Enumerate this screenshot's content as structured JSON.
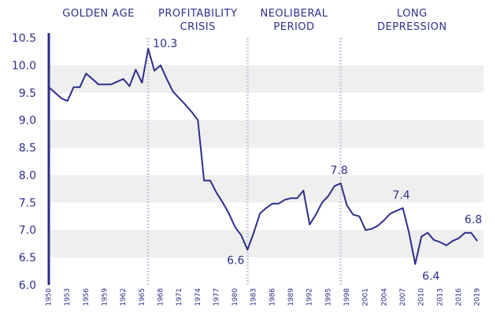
{
  "chart_data": {
    "type": "line",
    "title": "",
    "xlabel": "",
    "ylabel": "",
    "xlim": [
      1950,
      2020
    ],
    "ylim": [
      6.0,
      10.5
    ],
    "grid": "alternating-bands",
    "colors": {
      "line": "#2e2e8c",
      "text": "#2e2e8c",
      "band": "#efefef",
      "divider": "#cfcfe2"
    },
    "yticks": [
      6.0,
      6.5,
      7.0,
      7.5,
      8.0,
      8.5,
      9.0,
      9.5,
      10.0,
      10.5
    ],
    "ytick_labels": [
      "6.0",
      "6.5",
      "7.0",
      "7.5",
      "8.0",
      "8.5",
      "9.0",
      "9.5",
      "10.0",
      "10.5"
    ],
    "xticks": [
      1950,
      1953,
      1956,
      1959,
      1962,
      1965,
      1968,
      1971,
      1974,
      1977,
      1980,
      1983,
      1986,
      1989,
      1992,
      1995,
      1998,
      2001,
      2004,
      2007,
      2010,
      2013,
      2016,
      2019
    ],
    "xtick_labels": [
      "1950",
      "1953",
      "1956",
      "1959",
      "1962",
      "1965",
      "1968",
      "1971",
      "1974",
      "1977",
      "1980",
      "1983",
      "1986",
      "1989",
      "1992",
      "1995",
      "1998",
      "2001",
      "2004",
      "2007",
      "2010",
      "2013",
      "2016",
      "2019"
    ],
    "periods": [
      {
        "lines": [
          "GOLDEN AGE"
        ],
        "start": 1950,
        "end": 1966
      },
      {
        "lines": [
          "PROFITABILITY",
          "CRISIS"
        ],
        "start": 1966,
        "end": 1982
      },
      {
        "lines": [
          "NEOLIBERAL",
          "PERIOD"
        ],
        "start": 1982,
        "end": 1997
      },
      {
        "lines": [
          "LONG",
          "DEPRESSION"
        ],
        "start": 1997,
        "end": 2020
      }
    ],
    "dividers": [
      1966,
      1982,
      1997
    ],
    "series": [
      {
        "x": [
          1950,
          1951,
          1952,
          1953,
          1954,
          1955,
          1956,
          1957,
          1958,
          1959,
          1960,
          1961,
          1962,
          1963,
          1964,
          1965,
          1966,
          1967,
          1968,
          1969,
          1970,
          1971,
          1972,
          1973,
          1974,
          1975,
          1976,
          1977,
          1978,
          1979,
          1980,
          1981,
          1982,
          1983,
          1984,
          1985,
          1986,
          1987,
          1988,
          1989,
          1990,
          1991,
          1992,
          1993,
          1994,
          1995,
          1996,
          1997,
          1998,
          1999,
          2000,
          2001,
          2002,
          2003,
          2004,
          2005,
          2006,
          2007,
          2008,
          2009,
          2010,
          2011,
          2012,
          2013,
          2014,
          2015,
          2016,
          2017,
          2018,
          2019
        ],
        "y": [
          9.6,
          9.5,
          9.4,
          9.35,
          9.6,
          9.6,
          9.85,
          9.75,
          9.65,
          9.65,
          9.65,
          9.7,
          9.75,
          9.62,
          9.92,
          9.68,
          10.3,
          9.9,
          10.0,
          9.75,
          9.52,
          9.4,
          9.28,
          9.15,
          9.0,
          7.9,
          7.9,
          7.68,
          7.5,
          7.3,
          7.05,
          6.9,
          6.64,
          6.95,
          7.3,
          7.4,
          7.48,
          7.48,
          7.55,
          7.58,
          7.58,
          7.72,
          7.1,
          7.28,
          7.5,
          7.62,
          7.8,
          7.85,
          7.45,
          7.28,
          7.25,
          7.0,
          7.02,
          7.08,
          7.18,
          7.3,
          7.35,
          7.4,
          6.95,
          6.38,
          6.88,
          6.95,
          6.82,
          6.78,
          6.72,
          6.8,
          6.85,
          6.95,
          6.95,
          6.8
        ]
      }
    ],
    "annotations": [
      {
        "text": "10.3",
        "x": 1966,
        "y": 10.3
      },
      {
        "text": "6.6",
        "x": 1982,
        "y": 6.64
      },
      {
        "text": "7.8",
        "x": 1997,
        "y": 7.85
      },
      {
        "text": "7.4",
        "x": 2007,
        "y": 7.4
      },
      {
        "text": "6.4",
        "x": 2009,
        "y": 6.38
      },
      {
        "text": "6.8",
        "x": 2019,
        "y": 6.95
      }
    ]
  }
}
